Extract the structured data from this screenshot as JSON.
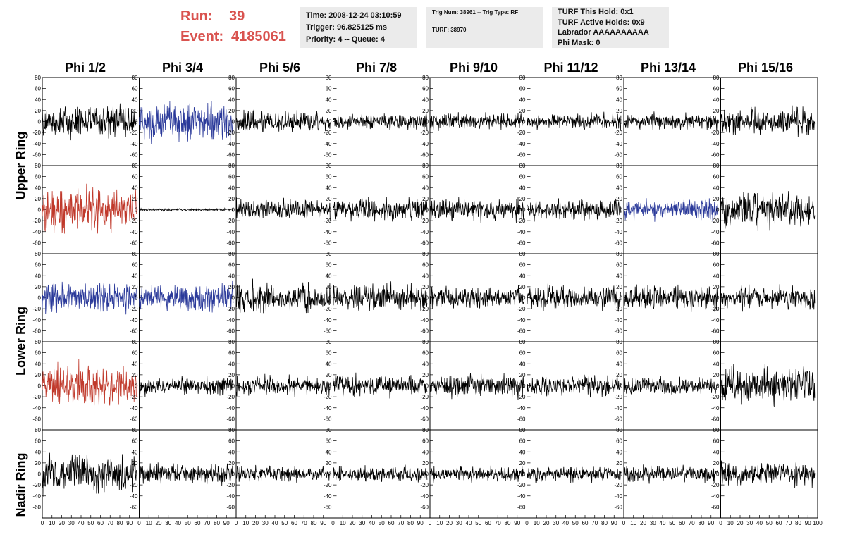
{
  "header": {
    "run_label": "Run:",
    "run_value": "39",
    "event_label": "Event:",
    "event_value": "4185061"
  },
  "info_boxes": {
    "time": {
      "line1": "Time: 2008-12-24 03:10:59",
      "line2": "Trigger: 96.825125 ms",
      "line3": "Priority: 4 -- Queue: 4"
    },
    "trig": {
      "line1": "Trig Num: 38961 -- Trig Type: RF",
      "line2": "TURF: 38970"
    },
    "turf": {
      "line1": "TURF This Hold: 0x1",
      "line2": "TURF Active Holds: 0x9",
      "line3": "Labrador AAAAAAAAAA",
      "line4": "Phi Mask: 0"
    }
  },
  "columns": [
    "Phi 1/2",
    "Phi 3/4",
    "Phi 5/6",
    "Phi 7/8",
    "Phi 9/10",
    "Phi 11/12",
    "Phi 13/14",
    "Phi 15/16"
  ],
  "row_groups": [
    {
      "label": "Upper Ring",
      "rows": [
        0,
        1
      ]
    },
    {
      "label": "Lower Ring",
      "rows": [
        2,
        3
      ]
    },
    {
      "label": "Nadir Ring",
      "rows": [
        4
      ]
    }
  ],
  "colors": {
    "default_trace": "#000000",
    "highlight_red": "#c0392b",
    "highlight_blue": "#2b3a9a",
    "header_red": "#d9534f",
    "info_bg": "#ebebeb"
  },
  "chart_data": {
    "type": "line",
    "title": "",
    "xlabel": "",
    "ylabel": "",
    "xlim": [
      0,
      100
    ],
    "ylim": [
      -80,
      80
    ],
    "y_ticks": [
      -60,
      -40,
      -20,
      0,
      20,
      40,
      60,
      80
    ],
    "x_ticks": [
      0,
      10,
      20,
      30,
      40,
      50,
      60,
      70,
      80,
      90,
      100
    ],
    "samples": 256,
    "panels": [
      [
        {
          "amp": 26,
          "color": "black"
        },
        {
          "amp": 30,
          "color": "blue"
        },
        {
          "amp": 18,
          "color": "black"
        },
        {
          "amp": 13,
          "color": "black"
        },
        {
          "amp": 13,
          "color": "black"
        },
        {
          "amp": 12,
          "color": "black"
        },
        {
          "amp": 13,
          "color": "black"
        },
        {
          "amp": 20,
          "color": "black"
        }
      ],
      [
        {
          "amp": 35,
          "color": "red"
        },
        {
          "amp": 2,
          "color": "black"
        },
        {
          "amp": 16,
          "color": "black"
        },
        {
          "amp": 17,
          "color": "black"
        },
        {
          "amp": 17,
          "color": "black"
        },
        {
          "amp": 17,
          "color": "black"
        },
        {
          "amp": 16,
          "color": "blue"
        },
        {
          "amp": 27,
          "color": "black"
        }
      ],
      [
        {
          "amp": 25,
          "color": "blue"
        },
        {
          "amp": 21,
          "color": "blue"
        },
        {
          "amp": 22,
          "color": "black"
        },
        {
          "amp": 20,
          "color": "black"
        },
        {
          "amp": 17,
          "color": "black"
        },
        {
          "amp": 18,
          "color": "black"
        },
        {
          "amp": 21,
          "color": "black"
        },
        {
          "amp": 17,
          "color": "black"
        }
      ],
      [
        {
          "amp": 33,
          "color": "red"
        },
        {
          "amp": 14,
          "color": "black"
        },
        {
          "amp": 16,
          "color": "black"
        },
        {
          "amp": 17,
          "color": "black"
        },
        {
          "amp": 18,
          "color": "black"
        },
        {
          "amp": 16,
          "color": "black"
        },
        {
          "amp": 15,
          "color": "black"
        },
        {
          "amp": 28,
          "color": "black"
        }
      ],
      [
        {
          "amp": 30,
          "color": "black"
        },
        {
          "amp": 16,
          "color": "black"
        },
        {
          "amp": 12,
          "color": "black"
        },
        {
          "amp": 12,
          "color": "black"
        },
        {
          "amp": 12,
          "color": "black"
        },
        {
          "amp": 12,
          "color": "black"
        },
        {
          "amp": 13,
          "color": "black"
        },
        {
          "amp": 18,
          "color": "black"
        }
      ]
    ]
  }
}
